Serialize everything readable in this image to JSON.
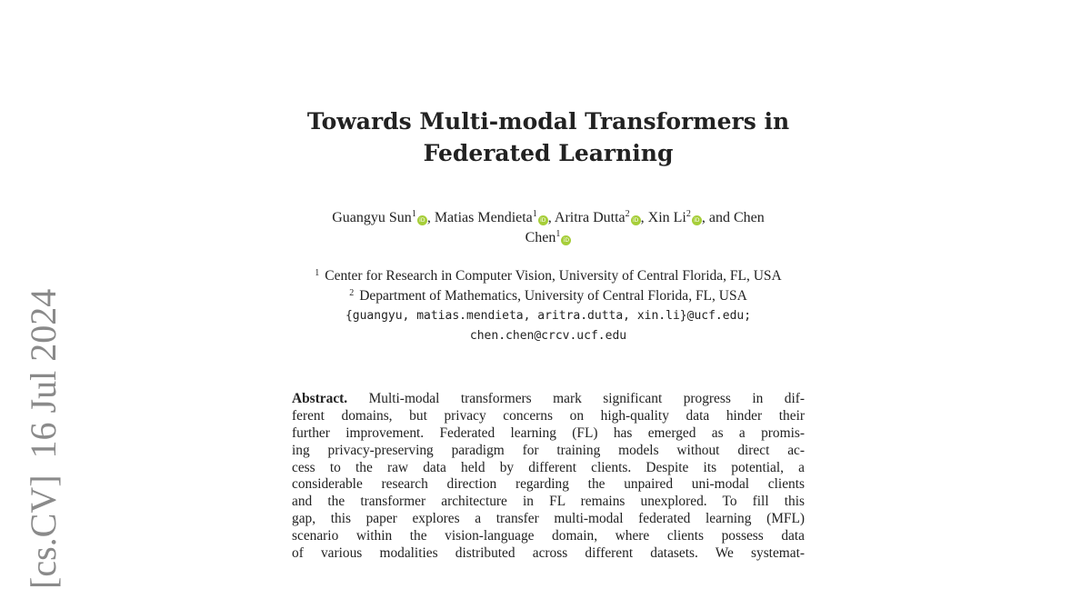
{
  "arxiv_stamp": {
    "category": "[cs.CV]",
    "date": "16 Jul 2024"
  },
  "title": {
    "line1": "Towards Multi-modal Transformers in",
    "line2": "Federated Learning"
  },
  "authors": [
    {
      "name": "Guangyu Sun",
      "aff": "1",
      "sep": ", "
    },
    {
      "name": "Matias Mendieta",
      "aff": "1",
      "sep": ", "
    },
    {
      "name": "Aritra Dutta",
      "aff": "2",
      "sep": ", "
    },
    {
      "name": "Xin Li",
      "aff": "2",
      "sep": ", and Chen"
    },
    {
      "name": "Chen",
      "aff": "1",
      "sep": ""
    }
  ],
  "orcid_icon_color": "#a6ce39",
  "affiliations": [
    {
      "num": "1",
      "text": "Center for Research in Computer Vision, University of Central Florida, FL, USA"
    },
    {
      "num": "2",
      "text": "Department of Mathematics, University of Central Florida, FL, USA"
    }
  ],
  "emails": [
    "{guangyu, matias.mendieta, aritra.dutta, xin.li}@ucf.edu;",
    "chen.chen@crcv.ucf.edu"
  ],
  "abstract": {
    "label": "Abstract.",
    "lines": [
      " Multi-modal transformers mark significant progress in dif-",
      "ferent domains, but privacy concerns on high-quality data hinder their",
      "further improvement. Federated learning (FL) has emerged as a promis-",
      "ing privacy-preserving paradigm for training models without direct ac-",
      "cess to the raw data held by different clients. Despite its potential, a",
      "considerable research direction regarding the unpaired uni-modal clients",
      "and the transformer architecture in FL remains unexplored. To fill this",
      "gap, this paper explores a transfer multi-modal federated learning (MFL)",
      "scenario within the vision-language domain, where clients possess data",
      "of various modalities distributed across different datasets. We systemat-"
    ]
  }
}
